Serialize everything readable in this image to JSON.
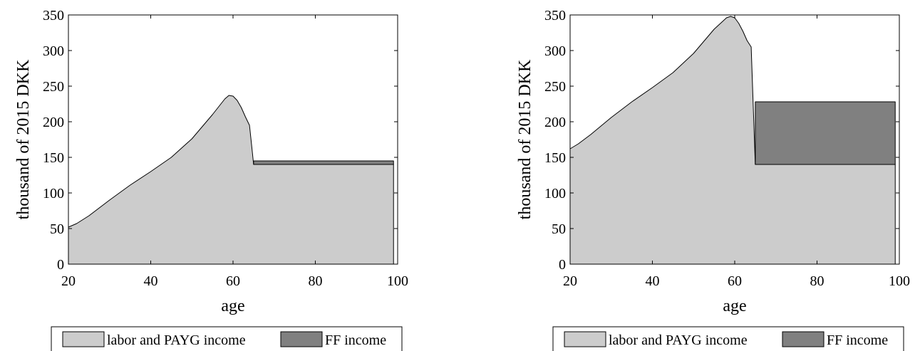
{
  "chart_data": [
    {
      "type": "area",
      "stacked": true,
      "x": [
        20,
        22,
        25,
        30,
        35,
        40,
        45,
        50,
        55,
        58,
        59,
        60,
        61,
        62,
        63,
        64,
        64.5,
        65,
        70,
        80,
        90,
        99
      ],
      "xlabel": "age",
      "ylabel": "thousand of 2015 DKK",
      "xlim": [
        20,
        100
      ],
      "ylim": [
        0,
        350
      ],
      "xticks": [
        "20",
        "40",
        "60",
        "80",
        "100"
      ],
      "yticks": [
        "0",
        "50",
        "100",
        "150",
        "200",
        "250",
        "300",
        "350"
      ],
      "grid": false,
      "legend": "bottom",
      "series": [
        {
          "name": "labor and PAYG income",
          "color": "#cccccc",
          "values": [
            52,
            57,
            68,
            90,
            111,
            130,
            150,
            176,
            210,
            232,
            237,
            236,
            230,
            220,
            207,
            195,
            168,
            140,
            140,
            140,
            140,
            140
          ]
        },
        {
          "name": "FF income",
          "color": "#808080",
          "values": [
            0,
            0,
            0,
            0,
            0,
            0,
            0,
            0,
            0,
            0,
            0,
            0,
            0,
            0,
            0,
            0,
            0,
            5,
            5,
            5,
            5,
            5
          ]
        }
      ]
    },
    {
      "type": "area",
      "stacked": true,
      "x": [
        20,
        22,
        25,
        30,
        35,
        40,
        45,
        50,
        55,
        58,
        59,
        60,
        61,
        62,
        63,
        64,
        64.5,
        65,
        70,
        80,
        90,
        99
      ],
      "xlabel": "age",
      "ylabel": "thousand of 2015 DKK",
      "xlim": [
        20,
        100
      ],
      "ylim": [
        0,
        350
      ],
      "xticks": [
        "20",
        "40",
        "60",
        "80",
        "100"
      ],
      "yticks": [
        "0",
        "50",
        "100",
        "150",
        "200",
        "250",
        "300",
        "350"
      ],
      "grid": false,
      "legend": "bottom",
      "series": [
        {
          "name": "labor and PAYG income",
          "color": "#cccccc",
          "values": [
            162,
            169,
            182,
            206,
            228,
            248,
            269,
            296,
            330,
            346,
            348,
            346,
            338,
            327,
            314,
            305,
            222,
            140,
            140,
            140,
            140,
            140
          ]
        },
        {
          "name": "FF income",
          "color": "#808080",
          "values": [
            0,
            0,
            0,
            0,
            0,
            0,
            0,
            0,
            0,
            0,
            0,
            0,
            0,
            0,
            0,
            0,
            0,
            88,
            88,
            88,
            88,
            88
          ]
        }
      ]
    }
  ]
}
